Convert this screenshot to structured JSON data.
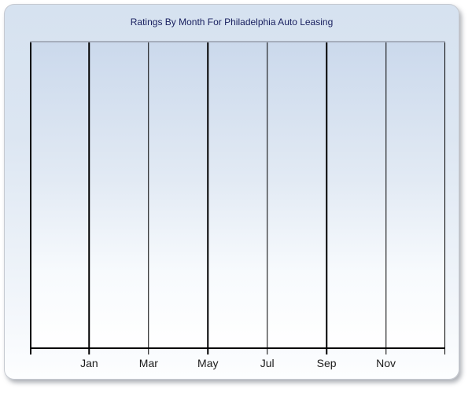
{
  "window": {
    "background": "#ffffff"
  },
  "panel": {
    "border_color": "#c5c9d0",
    "bg_top": "#d6e2f0",
    "bg_bottom": "#fdfeff"
  },
  "chart_data": {
    "type": "bar",
    "title": "Ratings By Month For Philadelphia Auto Leasing",
    "title_color": "#1a2160",
    "xlabel": "",
    "ylabel": "",
    "x_tick_labels": [
      "Jan",
      "Mar",
      "May",
      "Jul",
      "Sep",
      "Nov"
    ],
    "series": [],
    "values": [],
    "column_count": 7,
    "vertical_gridline_count": 8,
    "grid": "vertical-only",
    "legend": "none",
    "y_tick_labels": [],
    "plot": {
      "bg_top": "#cbd9ec",
      "bg_bottom": "#ffffff",
      "top_border_color": "#a6aebc",
      "line_color": "#000000",
      "label_color": "#1c1c1c"
    }
  }
}
